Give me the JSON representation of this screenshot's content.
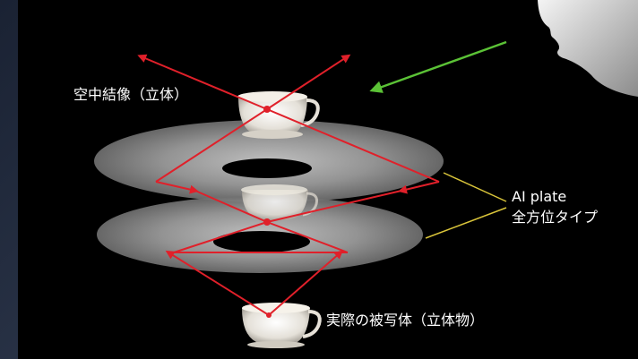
{
  "labels": {
    "aerial_image": "空中結像（立体）",
    "plate_name": "AI plate",
    "plate_type": "全方位タイプ",
    "real_object": "実際の被写体（立体物）"
  },
  "colors": {
    "background_outer": "#1c2434",
    "panel": "#000000",
    "ray": "#e0202a",
    "eye_line": "#5bc236",
    "pointer_line": "#d9c43a",
    "plate": "#9a9a9a"
  },
  "icons": {
    "eye_arrow": "green-arrow-icon",
    "viewer": "face-silhouette-icon"
  }
}
